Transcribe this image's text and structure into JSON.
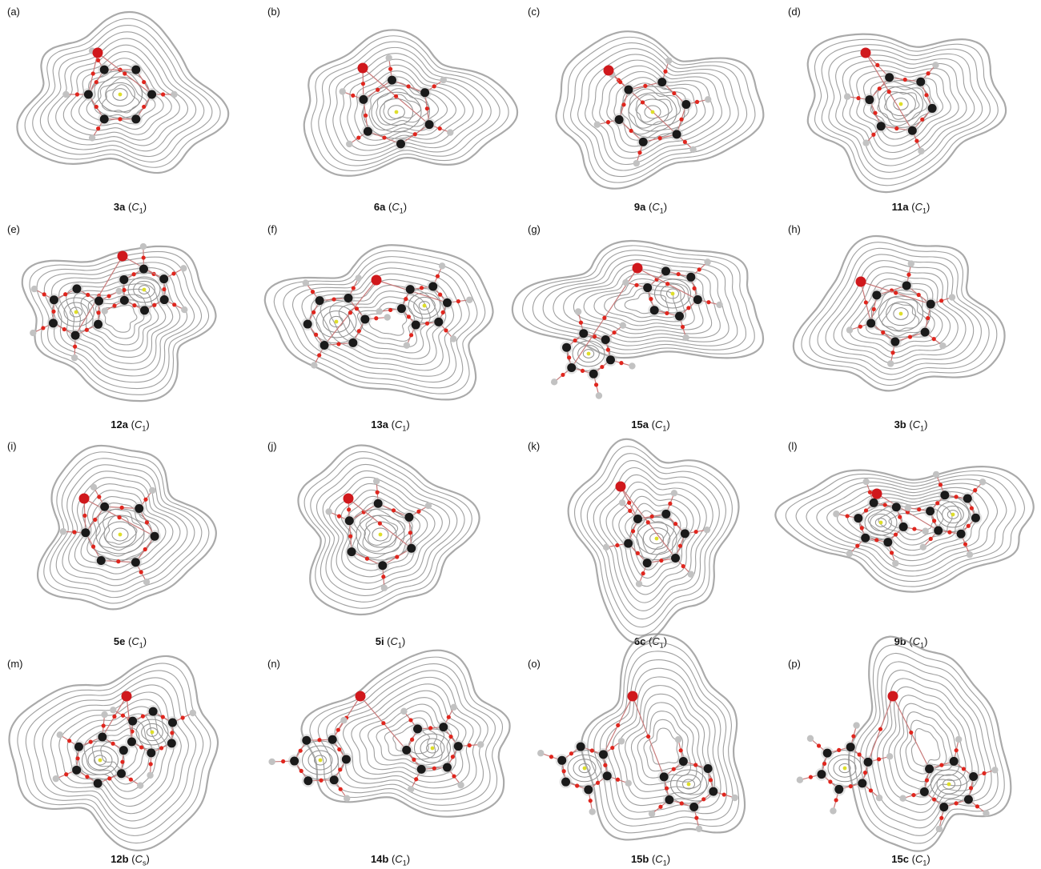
{
  "figure": {
    "panels": [
      {
        "letter": "(a)",
        "compound": "3a",
        "point_group": "C",
        "subscript": "1"
      },
      {
        "letter": "(b)",
        "compound": "6a",
        "point_group": "C",
        "subscript": "1"
      },
      {
        "letter": "(c)",
        "compound": "9a",
        "point_group": "C",
        "subscript": "1"
      },
      {
        "letter": "(d)",
        "compound": "11a",
        "point_group": "C",
        "subscript": "1"
      },
      {
        "letter": "(e)",
        "compound": "12a",
        "point_group": "C",
        "subscript": "1"
      },
      {
        "letter": "(f)",
        "compound": "13a",
        "point_group": "C",
        "subscript": "1"
      },
      {
        "letter": "(g)",
        "compound": "15a",
        "point_group": "C",
        "subscript": "1"
      },
      {
        "letter": "(h)",
        "compound": "3b",
        "point_group": "C",
        "subscript": "1"
      },
      {
        "letter": "(i)",
        "compound": "5e",
        "point_group": "C",
        "subscript": "1"
      },
      {
        "letter": "(j)",
        "compound": "5i",
        "point_group": "C",
        "subscript": "1"
      },
      {
        "letter": "(k)",
        "compound": "6c",
        "point_group": "C",
        "subscript": "1"
      },
      {
        "letter": "(l)",
        "compound": "9b",
        "point_group": "C",
        "subscript": "1"
      },
      {
        "letter": "(m)",
        "compound": "12b",
        "point_group": "C",
        "subscript": "s"
      },
      {
        "letter": "(n)",
        "compound": "14b",
        "point_group": "C",
        "subscript": "1"
      },
      {
        "letter": "(o)",
        "compound": "15b",
        "point_group": "C",
        "subscript": "1"
      },
      {
        "letter": "(p)",
        "compound": "15c",
        "point_group": "C",
        "subscript": "1"
      }
    ]
  },
  "colors": {
    "contour": "#8e8e8e",
    "oxygen": "#d0181c",
    "carbon": "#1a1a1a",
    "hydrogen": "#c2c2c2",
    "bond_path": "#c87a7a",
    "bond_cp": "#e0261e",
    "ring_cp": "#dede2a"
  },
  "legend_icons": [
    "oxygen-atom-icon",
    "carbon-atom-icon",
    "hydrogen-atom-icon",
    "bond-critical-point-icon",
    "ring-critical-point-icon"
  ]
}
